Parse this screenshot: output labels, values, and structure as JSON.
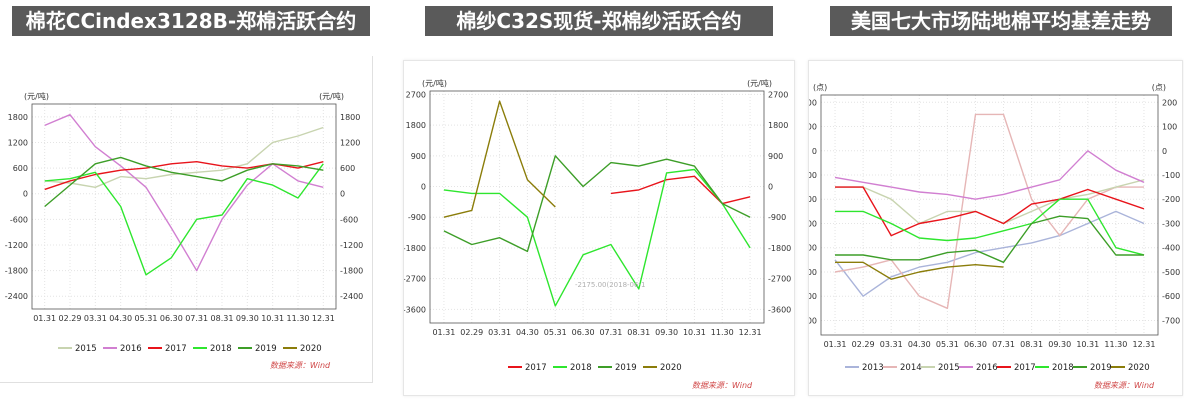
{
  "panels": [
    {
      "title": "棉花CCindex3128B-郑棉活跃合约",
      "source": "数据来源：Wind",
      "chart_data": {
        "type": "line",
        "unit_left": "(元/吨)",
        "unit_right": "(元/吨)",
        "ylim": [
          -2700,
          2100
        ],
        "yticks": [
          -2400,
          -1800,
          -1200,
          -600,
          0,
          600,
          1200,
          1800
        ],
        "categories": [
          "01.31",
          "02.29",
          "03.31",
          "04.30",
          "05.31",
          "06.30",
          "07.31",
          "08.31",
          "09.30",
          "10.31",
          "11.30",
          "12.31"
        ],
        "series": [
          {
            "name": "2015",
            "color": "#c8d4b0",
            "values": [
              300,
              250,
              150,
              400,
              350,
              450,
              500,
              550,
              700,
              1200,
              1350,
              1550
            ]
          },
          {
            "name": "2016",
            "color": "#d17fd1",
            "values": [
              1600,
              1850,
              1100,
              650,
              150,
              -800,
              -1800,
              -600,
              200,
              700,
              300,
              150
            ]
          },
          {
            "name": "2017",
            "color": "#e8141b",
            "values": [
              100,
              300,
              450,
              550,
              600,
              700,
              750,
              650,
              600,
              700,
              600,
              750
            ]
          },
          {
            "name": "2018",
            "color": "#2ee62e",
            "values": [
              300,
              350,
              500,
              -300,
              -1900,
              -1500,
              -600,
              -500,
              350,
              200,
              -100,
              700
            ]
          },
          {
            "name": "2019",
            "color": "#3d9e28",
            "values": [
              -300,
              200,
              700,
              850,
              650,
              500,
              400,
              300,
              550,
              700,
              650,
              550
            ]
          },
          {
            "name": "2020",
            "color": "#8b7d0a",
            "values": [
              null,
              null,
              null,
              null,
              null,
              null,
              null,
              null,
              null,
              null,
              null,
              null
            ]
          }
        ]
      }
    },
    {
      "title": "棉纱C32S现货-郑棉纱活跃合约",
      "source": "数据来源：Wind",
      "annotation": "-2175.00(2018-06-1",
      "chart_data": {
        "type": "line",
        "unit_left": "(元/吨)",
        "unit_right": "(元/吨)",
        "ylim": [
          -4000,
          2800
        ],
        "yticks": [
          -3600,
          -2700,
          -1800,
          -900,
          0,
          900,
          1800,
          2700
        ],
        "categories": [
          "01.31",
          "02.29",
          "03.31",
          "04.30",
          "05.31",
          "06.30",
          "07.31",
          "08.31",
          "09.30",
          "10.31",
          "11.30",
          "12.31"
        ],
        "series": [
          {
            "name": "2017",
            "color": "#e8141b",
            "values": [
              null,
              null,
              null,
              null,
              null,
              null,
              -200,
              -100,
              200,
              300,
              -500,
              -300
            ]
          },
          {
            "name": "2018",
            "color": "#2ee62e",
            "values": [
              -100,
              -200,
              -200,
              -900,
              -3500,
              -2000,
              -1700,
              -3000,
              400,
              500,
              -500,
              -1800
            ]
          },
          {
            "name": "2019",
            "color": "#3d9e28",
            "values": [
              -1300,
              -1700,
              -1500,
              -1900,
              900,
              0,
              700,
              600,
              800,
              600,
              -500,
              -900
            ]
          },
          {
            "name": "2020",
            "color": "#8b7d0a",
            "values": [
              -900,
              -700,
              2500,
              200,
              -600,
              null,
              null,
              null,
              null,
              null,
              null,
              null
            ]
          }
        ]
      }
    },
    {
      "title": "美国七大市场陆地棉平均基差走势",
      "source": "数据来源：Wind",
      "chart_data": {
        "type": "line",
        "unit_left": "(点)",
        "unit_right": "(点)",
        "ylim": [
          -760,
          230
        ],
        "yticks": [
          -700,
          -600,
          -500,
          -400,
          -300,
          -200,
          -100,
          0,
          100,
          200
        ],
        "categories": [
          "01.31",
          "02.29",
          "03.31",
          "04.30",
          "05.31",
          "06.30",
          "07.31",
          "08.31",
          "09.30",
          "10.31",
          "11.30",
          "12.31"
        ],
        "series": [
          {
            "name": "2013",
            "color": "#aab4da",
            "values": [
              -450,
              -600,
              -520,
              -480,
              -460,
              -420,
              -400,
              -380,
              -350,
              -300,
              -250,
              -300
            ]
          },
          {
            "name": "2014",
            "color": "#e6b6b6",
            "values": [
              -500,
              -480,
              -450,
              -600,
              -650,
              150,
              150,
              -200,
              -350,
              -200,
              -150,
              -150
            ]
          },
          {
            "name": "2015",
            "color": "#c8d4b0",
            "values": [
              -150,
              -150,
              -200,
              -300,
              -250,
              -250,
              -300,
              -250,
              -200,
              -180,
              -150,
              -120
            ]
          },
          {
            "name": "2016",
            "color": "#d17fd1",
            "values": [
              -110,
              -130,
              -150,
              -170,
              -180,
              -200,
              -180,
              -150,
              -120,
              0,
              -80,
              -130
            ]
          },
          {
            "name": "2017",
            "color": "#e8141b",
            "values": [
              -150,
              -150,
              -350,
              -300,
              -280,
              -250,
              -300,
              -220,
              -200,
              -160,
              -200,
              -240
            ]
          },
          {
            "name": "2018",
            "color": "#2ee62e",
            "values": [
              -250,
              -250,
              -300,
              -360,
              -370,
              -360,
              -330,
              -300,
              -200,
              -200,
              -400,
              -430
            ]
          },
          {
            "name": "2019",
            "color": "#3d9e28",
            "values": [
              -430,
              -430,
              -450,
              -450,
              -420,
              -410,
              -460,
              -300,
              -270,
              -280,
              -430,
              -430
            ]
          },
          {
            "name": "2020",
            "color": "#8b7d0a",
            "values": [
              -460,
              -460,
              -530,
              -500,
              -480,
              -470,
              -480,
              null,
              null,
              null,
              null,
              null
            ]
          }
        ]
      }
    }
  ]
}
